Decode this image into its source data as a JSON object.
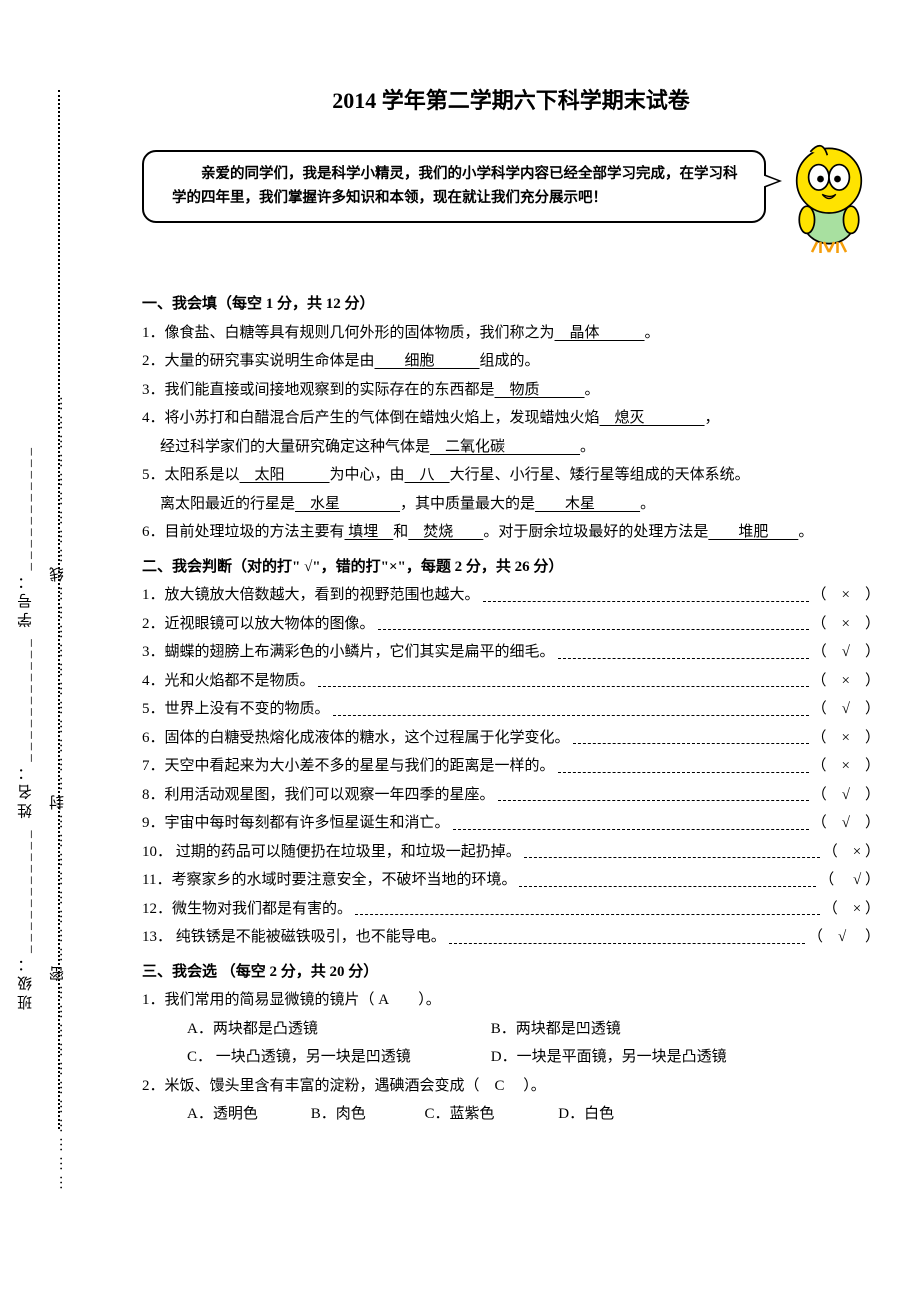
{
  "title": "2014 学年第二学期六下科学期末试卷",
  "sidebar": {
    "seal_line": "……………………………密……………………封……………………………线………………………",
    "labels_line": "班级：___________    姓名：___________    学号：___________"
  },
  "bubble": "　　亲爱的同学们，我是科学小精灵，我们的小学科学内容已经全部学习完成，在学习科学的四年里，我们掌握许多知识和本领，现在就让我们充分展示吧！",
  "mascot_colors": {
    "body": "#ffe300",
    "outline": "#1a1a1a",
    "beak": "#f59e0b",
    "feet": "#f59e0b",
    "shirt": "#a8e0a0",
    "eye_white": "#ffffff"
  },
  "s1": {
    "head": "一、我会填（每空 1 分，共 12 分）",
    "q1a": "1．像食盐、白糖等具有规则几何外形的固体物质，我们称之为",
    "q1_ans": "　晶体　　　",
    "q1b": "。",
    "q2a": "2．大量的研究事实说明生命体是由",
    "q2_ans": "　　细胞　　　",
    "q2b": "组成的。",
    "q3a": "3．我们能直接或间接地观察到的实际存在的东西都是",
    "q3_ans": "　物质　　　",
    "q3b": "。",
    "q4a": "4．将小苏打和白醋混合后产生的气体倒在蜡烛火焰上，发现蜡烛火焰",
    "q4_ans1": "　熄灭　　　　",
    "q4b": "，",
    "q4c": "经过科学家们的大量研究确定这种气体是",
    "q4_ans2": "　二氧化碳　　　　　",
    "q4d": "。",
    "q5a": "5．太阳系是以",
    "q5_ans1": "　太阳　　　",
    "q5b": "为中心，由",
    "q5_ans2": "　八　",
    "q5c": "大行星、小行星、矮行星等组成的天体系统。",
    "q5d": "离太阳最近的行星是",
    "q5_ans3": "　水星　　　　",
    "q5e": "，其中质量最大的是",
    "q5_ans4": "　　木星　　　",
    "q5f": "。",
    "q6a": "6．目前处理垃圾的方法主要有",
    "q6_ans1": " 填埋　",
    "q6b": "和",
    "q6_ans2": "　焚烧　　",
    "q6c": "。对于厨余垃圾最好的处理方法是",
    "q6_ans3": "　　堆肥　　",
    "q6d": "。"
  },
  "s2": {
    "head": "二、我会判断（对的打\" √\"，错的打\"×\"，每题 2 分，共 26 分）",
    "items": [
      {
        "t": "1．放大镜放大倍数越大，看到的视野范围也越大。",
        "a": "（　×　）"
      },
      {
        "t": "2．近视眼镜可以放大物体的图像。",
        "a": "（　×　）"
      },
      {
        "t": "3．蝴蝶的翅膀上布满彩色的小鳞片，它们其实是扁平的细毛。",
        "a": "（　√　）"
      },
      {
        "t": "4．光和火焰都不是物质。",
        "a": "（　×　）"
      },
      {
        "t": "5．世界上没有不变的物质。",
        "a": "（　√　）"
      },
      {
        "t": "6．固体的白糖受热熔化成液体的糖水，这个过程属于化学变化。",
        "a": "（　×　）"
      },
      {
        "t": "7．天空中看起来为大小差不多的星星与我们的距离是一样的。",
        "a": "（　×　）"
      },
      {
        "t": "8．利用活动观星图，我们可以观察一年四季的星座。",
        "a": "（　√　）"
      },
      {
        "t": "9．宇宙中每时每刻都有许多恒星诞生和消亡。",
        "a": "（　√　）"
      },
      {
        "t": "10． 过期的药品可以随便扔在垃圾里，和垃圾一起扔掉。",
        "a": "（　×  ）"
      },
      {
        "t": "11．考察家乡的水域时要注意安全，不破坏当地的环境。",
        "a": "（  　√  ）"
      },
      {
        "t": "12．微生物对我们都是有害的。",
        "a": "（　×  ）"
      },
      {
        "t": "13． 纯铁锈是不能被磁铁吸引，也不能导电。",
        "a": "（　√　 ）"
      }
    ]
  },
  "s3": {
    "head": "三、我会选 （每空 2 分，共 20 分）",
    "q1": "1．我们常用的简易显微镜的镜片（ A　　）。",
    "q1_optA": "A．两块都是凸透镜",
    "q1_optB": "B．两块都是凹透镜",
    "q1_optC": "C． 一块凸透镜，另一块是凹透镜",
    "q1_optD": "D．一块是平面镜，另一块是凸透镜",
    "q2": "2．米饭、馒头里含有丰富的淀粉，遇碘酒会变成（　C　 ）。",
    "q2_optA": "A．透明色",
    "q2_optB": "B．肉色",
    "q2_optC": "C．蓝紫色",
    "q2_optD": "D．白色"
  }
}
